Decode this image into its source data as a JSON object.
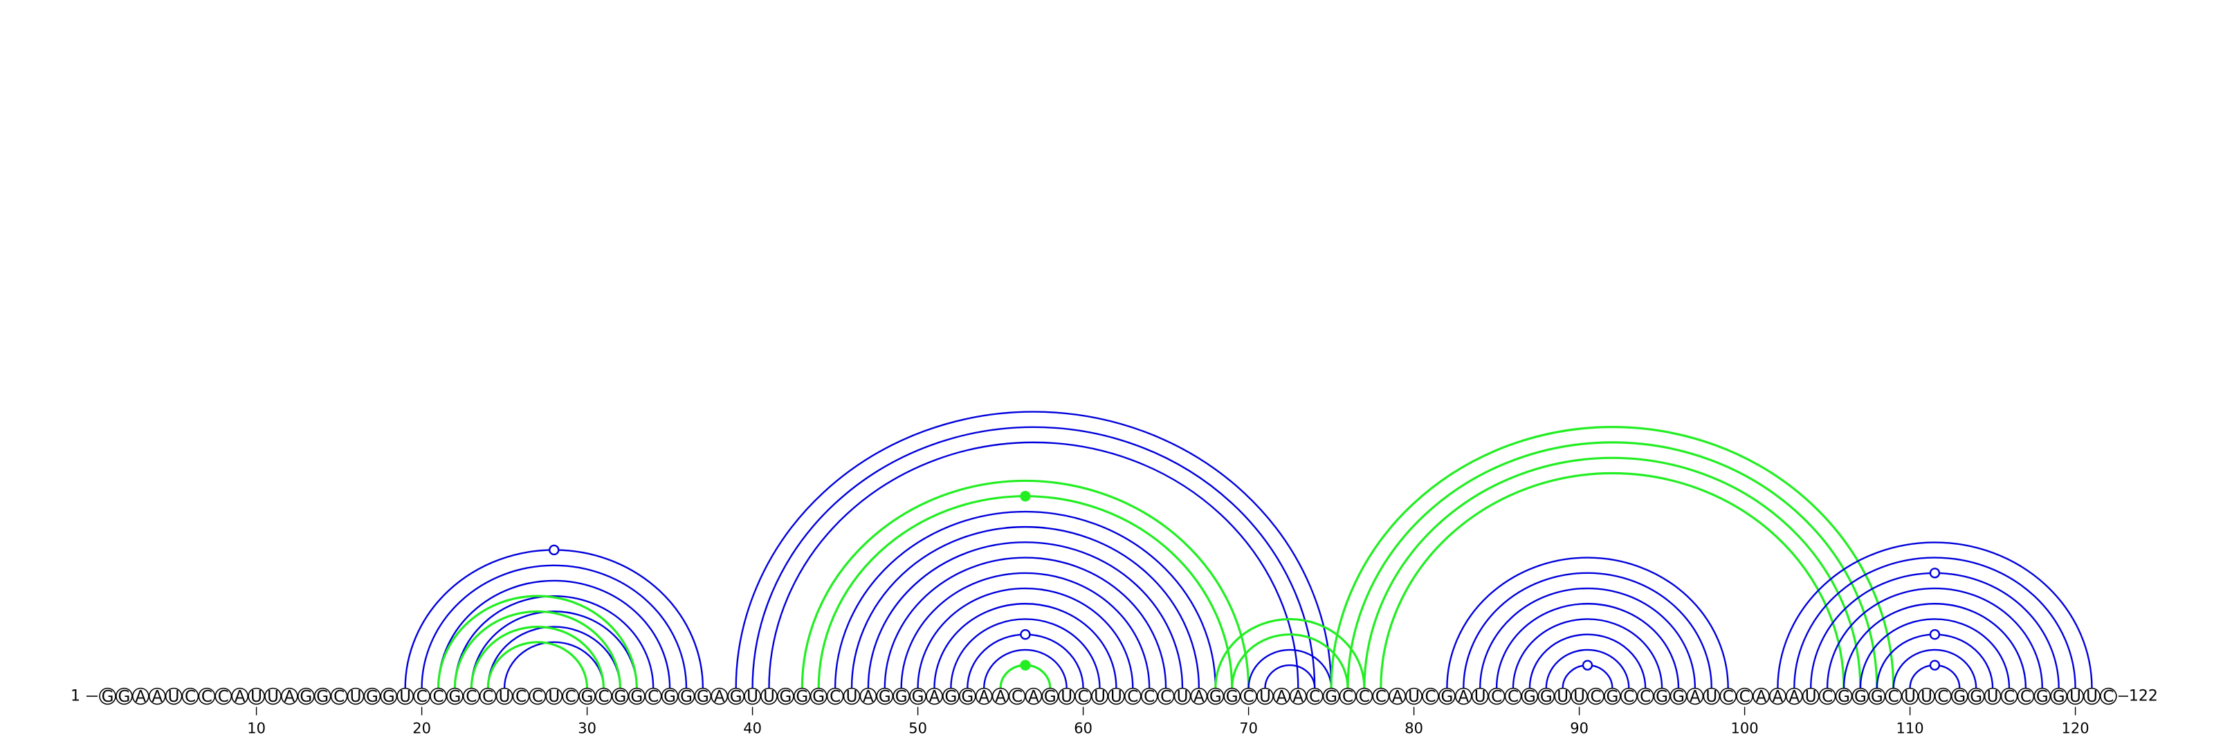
{
  "sequence": "GGAAUCCCAUUAGGCUGGUCCGCCUCCUCGCGGCGGGAGUUGGGCUAGGGAGGAACAGUCUUCCCUAGGCUAACGCCCAUCGAUCCGGUUCGCCGGAUCCAAAUCGGGCUUCGGUCCGGUUC",
  "start_label": "1",
  "end_label": "122",
  "ticks": [
    10,
    20,
    30,
    40,
    50,
    60,
    70,
    80,
    90,
    100,
    110,
    120
  ],
  "colors": {
    "blue": "#0000dd",
    "green": "#22ee22"
  },
  "arcs": [
    {
      "i": 19,
      "j": 37,
      "color": "blue"
    },
    {
      "i": 20,
      "j": 36,
      "color": "blue"
    },
    {
      "i": 21,
      "j": 35,
      "color": "blue"
    },
    {
      "i": 22,
      "j": 34,
      "color": "blue"
    },
    {
      "i": 23,
      "j": 33,
      "color": "blue"
    },
    {
      "i": 24,
      "j": 32,
      "color": "blue"
    },
    {
      "i": 25,
      "j": 31,
      "color": "blue"
    },
    {
      "i": 21,
      "j": 33,
      "color": "green"
    },
    {
      "i": 22,
      "j": 32,
      "color": "green"
    },
    {
      "i": 23,
      "j": 31,
      "color": "green"
    },
    {
      "i": 24,
      "j": 30,
      "color": "green"
    },
    {
      "i": 39,
      "j": 75,
      "color": "blue"
    },
    {
      "i": 40,
      "j": 74,
      "color": "blue"
    },
    {
      "i": 41,
      "j": 73,
      "color": "blue"
    },
    {
      "i": 43,
      "j": 70,
      "color": "green"
    },
    {
      "i": 44,
      "j": 69,
      "color": "green"
    },
    {
      "i": 45,
      "j": 68,
      "color": "blue"
    },
    {
      "i": 46,
      "j": 67,
      "color": "blue"
    },
    {
      "i": 47,
      "j": 66,
      "color": "blue"
    },
    {
      "i": 48,
      "j": 65,
      "color": "blue"
    },
    {
      "i": 49,
      "j": 64,
      "color": "blue"
    },
    {
      "i": 50,
      "j": 63,
      "color": "blue"
    },
    {
      "i": 51,
      "j": 62,
      "color": "blue"
    },
    {
      "i": 52,
      "j": 61,
      "color": "blue"
    },
    {
      "i": 53,
      "j": 60,
      "color": "blue"
    },
    {
      "i": 54,
      "j": 59,
      "color": "blue"
    },
    {
      "i": 55,
      "j": 58,
      "color": "green"
    },
    {
      "i": 68,
      "j": 77,
      "color": "green"
    },
    {
      "i": 69,
      "j": 76,
      "color": "green"
    },
    {
      "i": 70,
      "j": 75,
      "color": "blue"
    },
    {
      "i": 71,
      "j": 74,
      "color": "blue"
    },
    {
      "i": 75,
      "j": 109,
      "color": "green"
    },
    {
      "i": 76,
      "j": 108,
      "color": "green"
    },
    {
      "i": 77,
      "j": 107,
      "color": "green"
    },
    {
      "i": 78,
      "j": 106,
      "color": "green"
    },
    {
      "i": 82,
      "j": 99,
      "color": "blue"
    },
    {
      "i": 83,
      "j": 98,
      "color": "blue"
    },
    {
      "i": 84,
      "j": 97,
      "color": "blue"
    },
    {
      "i": 85,
      "j": 96,
      "color": "blue"
    },
    {
      "i": 86,
      "j": 95,
      "color": "blue"
    },
    {
      "i": 87,
      "j": 94,
      "color": "blue"
    },
    {
      "i": 88,
      "j": 93,
      "color": "blue"
    },
    {
      "i": 89,
      "j": 92,
      "color": "blue"
    },
    {
      "i": 102,
      "j": 121,
      "color": "blue"
    },
    {
      "i": 103,
      "j": 120,
      "color": "blue"
    },
    {
      "i": 104,
      "j": 119,
      "color": "blue"
    },
    {
      "i": 105,
      "j": 118,
      "color": "blue"
    },
    {
      "i": 106,
      "j": 117,
      "color": "blue"
    },
    {
      "i": 107,
      "j": 116,
      "color": "blue"
    },
    {
      "i": 108,
      "j": 115,
      "color": "blue"
    },
    {
      "i": 109,
      "j": 114,
      "color": "blue"
    },
    {
      "i": 110,
      "j": 113,
      "color": "blue"
    }
  ],
  "markers": [
    {
      "pos": 28,
      "arc_i": 19,
      "arc_j": 37,
      "color": "blue",
      "filled": false
    },
    {
      "pos": 56.5,
      "arc_i": 44,
      "arc_j": 69,
      "color": "green",
      "filled": true
    },
    {
      "pos": 56.5,
      "arc_i": 53,
      "arc_j": 60,
      "color": "blue",
      "filled": false
    },
    {
      "pos": 56.5,
      "arc_i": 55,
      "arc_j": 58,
      "color": "green",
      "filled": true
    },
    {
      "pos": 90.5,
      "arc_i": 89,
      "arc_j": 92,
      "color": "blue",
      "filled": false
    },
    {
      "pos": 111.5,
      "arc_i": 104,
      "arc_j": 119,
      "color": "blue",
      "filled": false
    },
    {
      "pos": 111.5,
      "arc_i": 108,
      "arc_j": 115,
      "color": "blue",
      "filled": false
    },
    {
      "pos": 111.5,
      "arc_i": 110,
      "arc_j": 113,
      "color": "blue",
      "filled": false
    }
  ]
}
